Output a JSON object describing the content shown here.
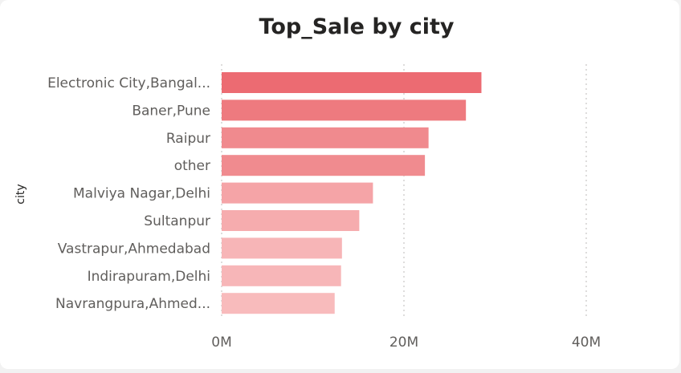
{
  "chart_data": {
    "type": "bar",
    "orientation": "horizontal",
    "title": "Top_Sale by city",
    "ylabel": "city",
    "xlabel": "",
    "categories": [
      "Electronic City,Bangal...",
      "Baner,Pune",
      "Raipur",
      "other",
      "Malviya Nagar,Delhi",
      "Sultanpur",
      "Vastrapur,Ahmedabad",
      "Indirapuram,Delhi",
      "Navrangpura,Ahmed..."
    ],
    "values": [
      28.5,
      26.8,
      22.7,
      22.3,
      16.6,
      15.1,
      13.2,
      13.1,
      12.4
    ],
    "value_unit": "M",
    "xlim": [
      0,
      48
    ],
    "x_ticks": [
      0,
      20,
      40
    ],
    "x_tick_labels": [
      "0M",
      "20M",
      "40M"
    ],
    "grid": "vertical dotted",
    "colors": [
      "#ec6b72",
      "#ee7a7f",
      "#f08a8e",
      "#f08b8f",
      "#f5a4a7",
      "#f6acae",
      "#f7b5b7",
      "#f7b6b8",
      "#f8bbbc"
    ]
  }
}
